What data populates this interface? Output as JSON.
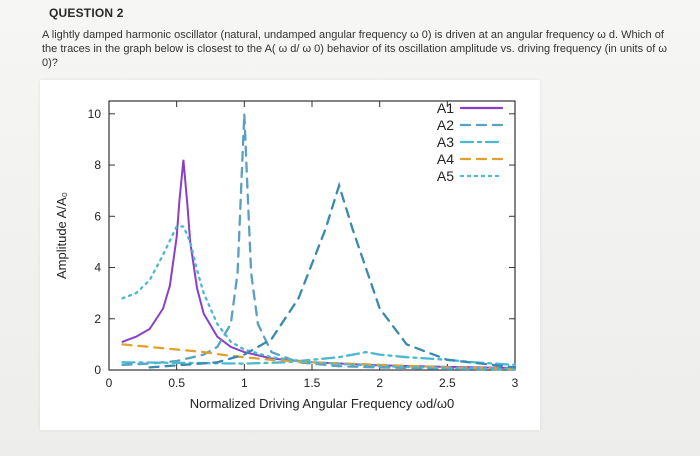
{
  "question": {
    "title": "QUESTION 2",
    "text": "A lightly damped harmonic oscillator (natural, undamped angular frequency ω 0) is driven at an angular frequency ω d. Which of the traces in the graph below is closest to the A( ω d/ ω 0) behavior of its oscillation amplitude vs. driving frequency (in units of ω 0)?"
  },
  "chart_data": {
    "type": "line",
    "title": "",
    "xlabel": "Normalized Driving Angular Frequency ωd/ω0",
    "ylabel": "Amplitude A/A₀",
    "xlim": [
      0,
      3
    ],
    "ylim": [
      0,
      10.5
    ],
    "xticks": [
      0,
      0.5,
      1,
      1.5,
      2,
      2.5,
      3
    ],
    "xtick_labels": [
      "0",
      "0.5",
      "1",
      "1.5",
      "2",
      "2.5",
      "3"
    ],
    "yticks": [
      0,
      2,
      4,
      6,
      8,
      10
    ],
    "ytick_labels": [
      "0",
      "2",
      "4",
      "6",
      "8",
      "10"
    ],
    "legend_position": "top-right",
    "series": [
      {
        "name": "A1",
        "color": "#8a3fc9",
        "style": "solid",
        "x": [
          0.1,
          0.2,
          0.3,
          0.4,
          0.45,
          0.5,
          0.52,
          0.55,
          0.58,
          0.6,
          0.65,
          0.7,
          0.8,
          0.9,
          1.0,
          1.2,
          1.5,
          2.0,
          2.5,
          3.0
        ],
        "y": [
          1.1,
          1.3,
          1.6,
          2.4,
          3.3,
          5.2,
          6.6,
          8.2,
          6.4,
          5.0,
          3.2,
          2.2,
          1.3,
          0.9,
          0.7,
          0.45,
          0.3,
          0.18,
          0.12,
          0.08
        ]
      },
      {
        "name": "A2",
        "color": "#5aa0c0",
        "style": "dashed",
        "x": [
          0.1,
          0.3,
          0.5,
          0.7,
          0.8,
          0.9,
          0.95,
          0.98,
          1.0,
          1.02,
          1.05,
          1.1,
          1.2,
          1.4,
          1.7,
          2.0,
          2.5,
          3.0
        ],
        "y": [
          0.2,
          0.25,
          0.35,
          0.6,
          0.9,
          1.8,
          3.8,
          7.5,
          10.0,
          7.5,
          3.8,
          1.8,
          0.7,
          0.3,
          0.15,
          0.1,
          0.05,
          0.02
        ]
      },
      {
        "name": "A3",
        "color": "#4ab8d0",
        "style": "dashdot",
        "x": [
          0.1,
          0.5,
          1.0,
          1.3,
          1.5,
          1.7,
          1.9,
          2.0,
          2.2,
          2.5,
          2.7,
          3.0
        ],
        "y": [
          0.3,
          0.28,
          0.25,
          0.3,
          0.4,
          0.5,
          0.7,
          0.6,
          0.5,
          0.4,
          0.3,
          0.2
        ]
      },
      {
        "name": "A4",
        "color": "#e0a030",
        "style": "dashed",
        "x": [
          0.1,
          0.3,
          0.5,
          0.7,
          0.9,
          1.0,
          1.2,
          1.5,
          2.0,
          2.5,
          3.0
        ],
        "y": [
          1.0,
          0.9,
          0.8,
          0.7,
          0.55,
          0.5,
          0.4,
          0.3,
          0.2,
          0.1,
          0.05
        ]
      },
      {
        "name": "A5",
        "color": "#4ab8d0",
        "style": "dotted",
        "x": [
          0.1,
          0.2,
          0.3,
          0.4,
          0.5,
          0.55,
          0.6,
          0.65,
          0.7,
          0.8,
          0.9,
          1.0,
          1.2,
          1.5,
          2.0,
          2.5,
          3.0
        ],
        "y": [
          2.8,
          3.0,
          3.5,
          4.5,
          5.6,
          5.6,
          5.0,
          3.9,
          3.0,
          1.8,
          1.1,
          0.8,
          0.5,
          0.3,
          0.15,
          0.08,
          0.05
        ]
      },
      {
        "name": "",
        "color": "#3a8ab0",
        "style": "dashed",
        "x": [
          0.3,
          0.8,
          1.0,
          1.2,
          1.4,
          1.6,
          1.7,
          1.8,
          2.0,
          2.2,
          2.5,
          3.0
        ],
        "y": [
          0.1,
          0.3,
          0.6,
          1.2,
          2.8,
          5.5,
          7.2,
          5.5,
          2.4,
          1.0,
          0.4,
          0.1
        ]
      }
    ]
  }
}
